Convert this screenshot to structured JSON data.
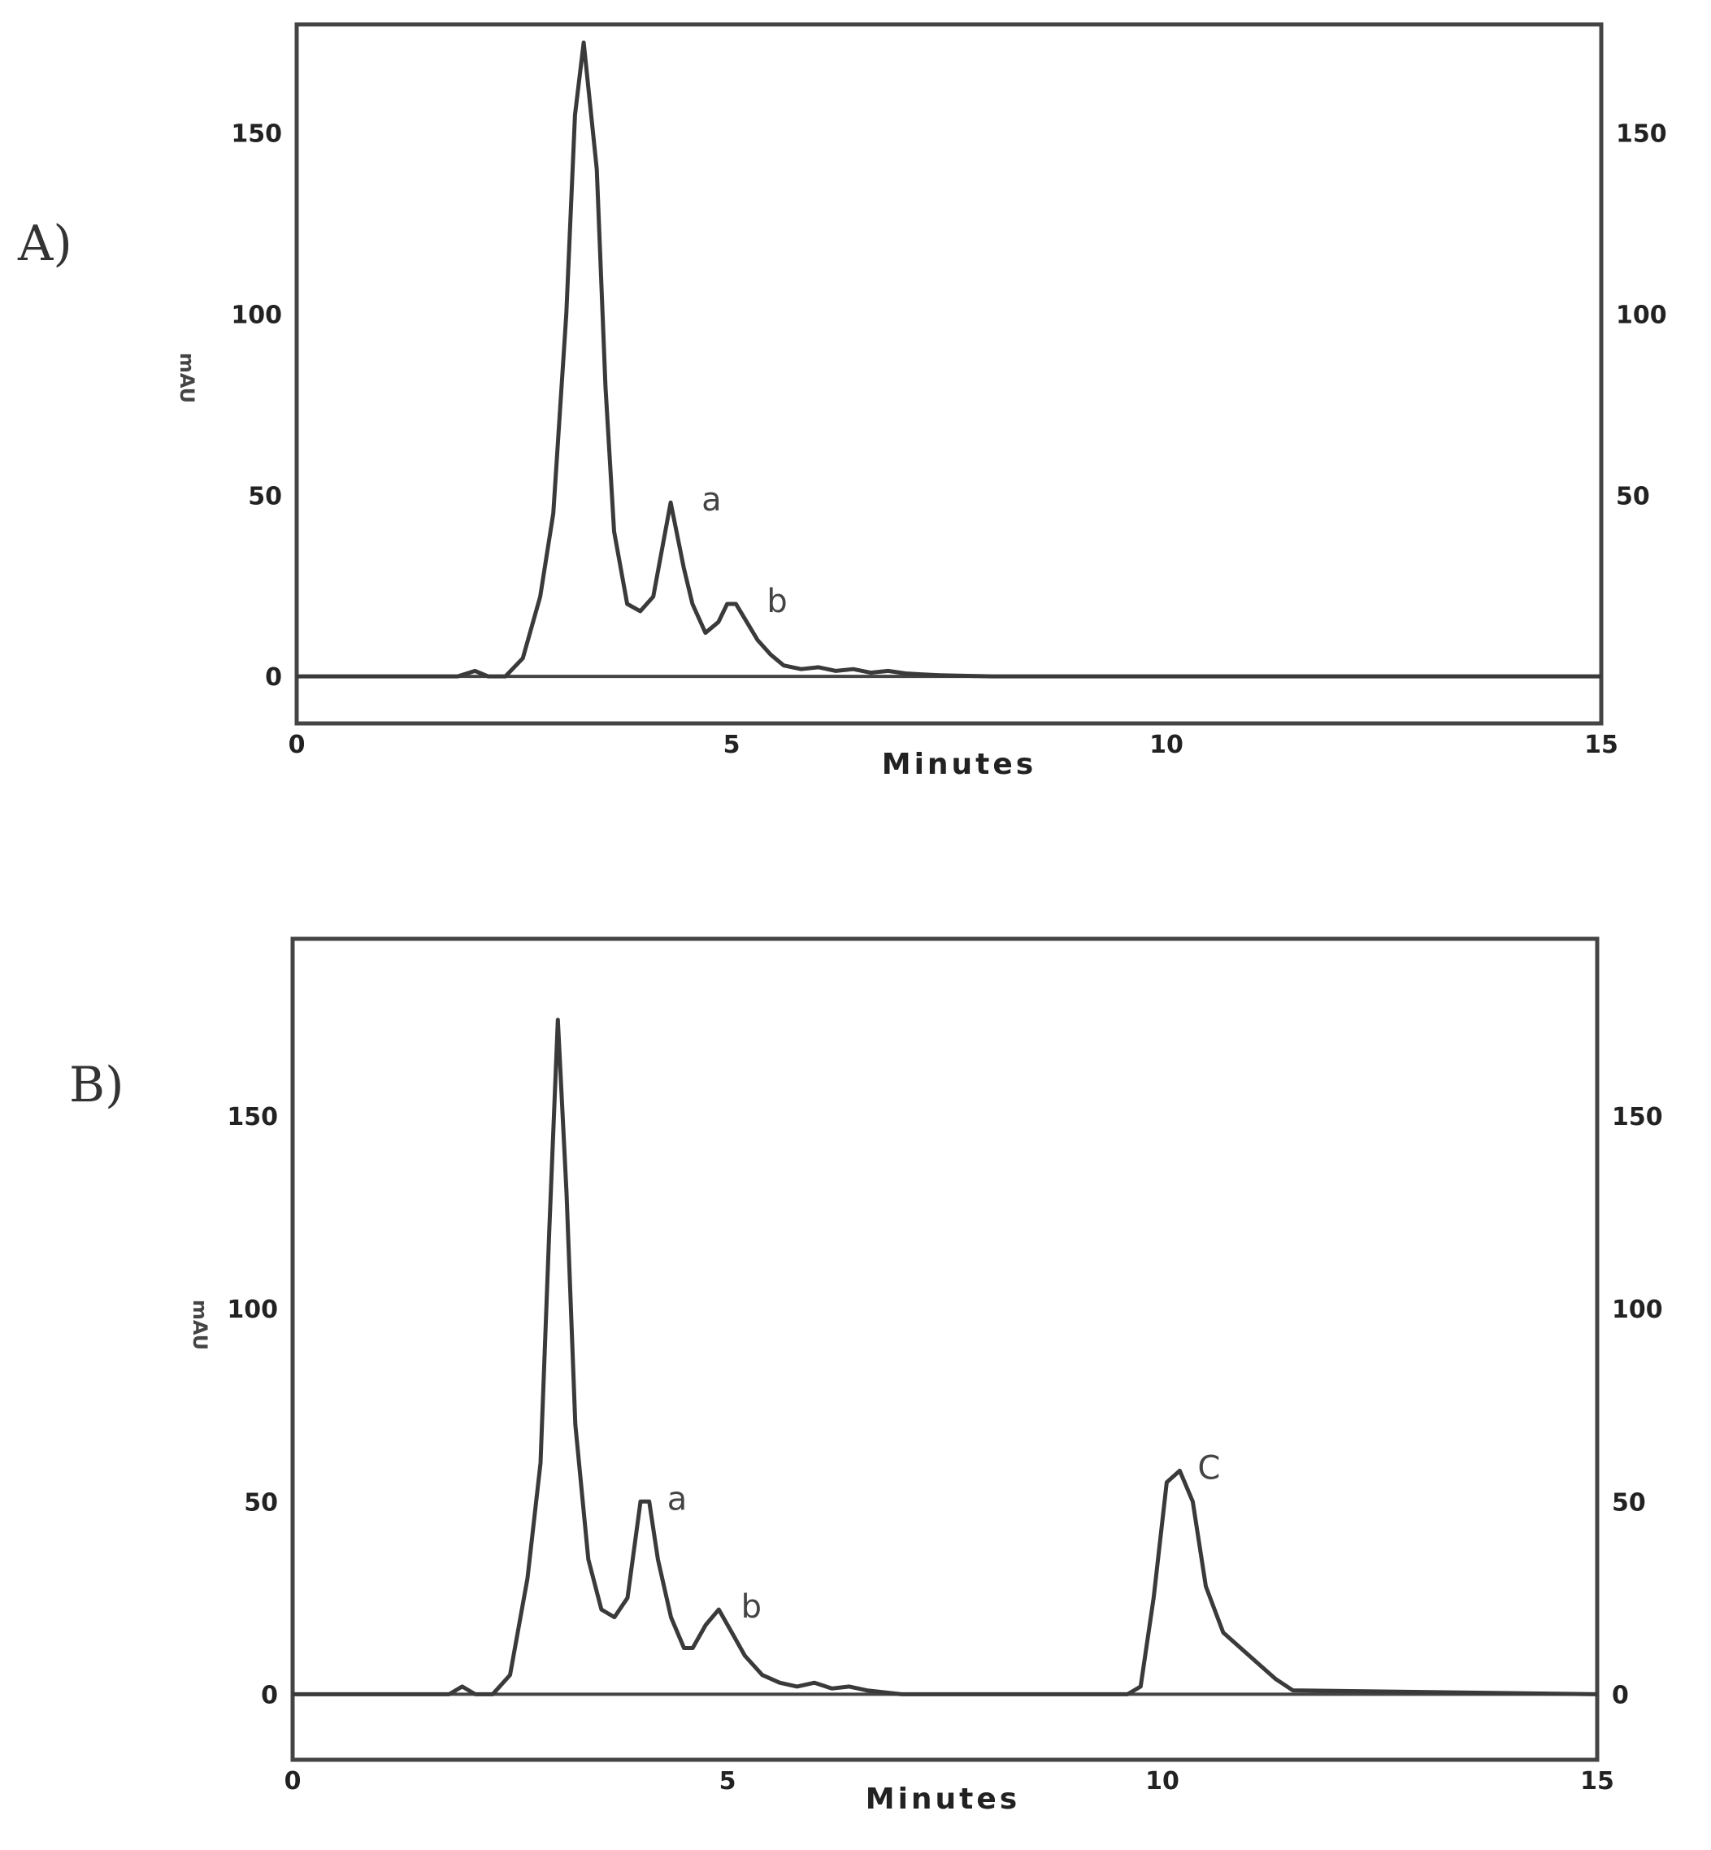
{
  "colors": {
    "trace": "#3a3a3a",
    "frame": "#444444",
    "text": "#222222"
  },
  "chart_data": [
    {
      "type": "line",
      "panel_label": "A)",
      "title": "",
      "xlabel": "Minutes",
      "ylabel": "mAU",
      "xlim": [
        0,
        15
      ],
      "ylim": [
        -13,
        180
      ],
      "xticks": [
        "0",
        "5",
        "10",
        "15"
      ],
      "yticks": [
        "0",
        "50",
        "100",
        "150"
      ],
      "right_yticks": [
        "",
        "50",
        "100",
        "150"
      ],
      "grid": false,
      "series": [
        {
          "x": [
            0,
            1.85,
            2.05,
            2.2,
            2.4,
            2.6,
            2.8,
            2.95,
            3.1,
            3.2,
            3.3,
            3.45,
            3.55,
            3.65,
            3.8,
            3.95,
            4.1,
            4.2,
            4.3,
            4.45,
            4.55,
            4.7,
            4.85,
            4.95,
            5.05,
            5.15,
            5.3,
            5.45,
            5.6,
            5.8,
            6.0,
            6.2,
            6.4,
            6.6,
            6.8,
            7.0,
            7.2,
            7.4,
            7.6,
            8.0,
            15
          ],
          "y": [
            0,
            0,
            1.5,
            0,
            0,
            5,
            22,
            45,
            100,
            155,
            175,
            140,
            80,
            40,
            20,
            18,
            22,
            35,
            48,
            30,
            20,
            12,
            15,
            20,
            20,
            16,
            10,
            6,
            3,
            2,
            2.5,
            1.5,
            2,
            1,
            1.5,
            0.8,
            0.5,
            0.3,
            0.2,
            0,
            0
          ]
        }
      ],
      "annotations": [
        {
          "text": "a",
          "x": 4.45,
          "y": 48
        },
        {
          "text": "b",
          "x": 5.2,
          "y": 20
        }
      ]
    },
    {
      "type": "line",
      "panel_label": "B)",
      "title": "",
      "xlabel": "Minutes",
      "ylabel": "mAU",
      "xlim": [
        0,
        15
      ],
      "ylim": [
        -17,
        196
      ],
      "xticks": [
        "0",
        "5",
        "10",
        "15"
      ],
      "yticks": [
        "0",
        "50",
        "100",
        "150"
      ],
      "right_yticks": [
        "0",
        "50",
        "100",
        "150"
      ],
      "grid": false,
      "series": [
        {
          "x": [
            0,
            1.8,
            1.95,
            2.1,
            2.3,
            2.5,
            2.7,
            2.85,
            2.95,
            3.05,
            3.15,
            3.25,
            3.4,
            3.55,
            3.7,
            3.85,
            4.0,
            4.1,
            4.2,
            4.35,
            4.5,
            4.6,
            4.75,
            4.9,
            5.05,
            5.2,
            5.4,
            5.6,
            5.8,
            6.0,
            6.2,
            6.4,
            6.6,
            6.8,
            7.0,
            9.6,
            9.75,
            9.9,
            10.05,
            10.2,
            10.35,
            10.5,
            10.7,
            10.9,
            11.1,
            11.3,
            11.5,
            15
          ],
          "y": [
            0,
            0,
            2,
            0,
            0,
            5,
            30,
            60,
            120,
            175,
            130,
            70,
            35,
            22,
            20,
            25,
            50,
            50,
            35,
            20,
            12,
            12,
            18,
            22,
            16,
            10,
            5,
            3,
            2,
            3,
            1.5,
            2,
            1,
            0.5,
            0,
            0,
            2,
            25,
            55,
            58,
            50,
            28,
            16,
            12,
            8,
            4,
            1,
            0
          ]
        }
      ],
      "annotations": [
        {
          "text": "a",
          "x": 4.1,
          "y": 50
        },
        {
          "text": "b",
          "x": 4.95,
          "y": 22
        },
        {
          "text": "C",
          "x": 10.2,
          "y": 58
        }
      ]
    }
  ]
}
